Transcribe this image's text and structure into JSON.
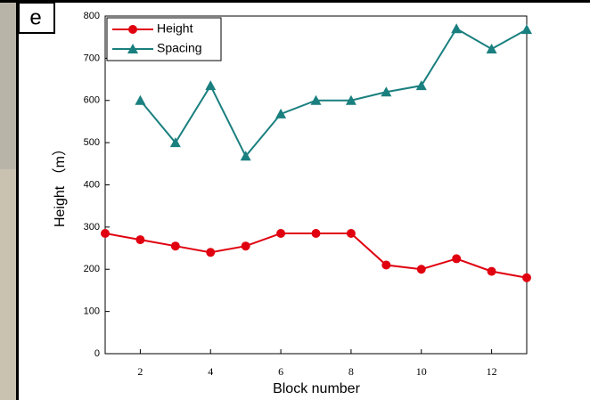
{
  "panel_label": "e",
  "chart_data": {
    "type": "line",
    "x": [
      1,
      2,
      3,
      4,
      5,
      6,
      7,
      8,
      9,
      10,
      11,
      12,
      13
    ],
    "series": [
      {
        "name": "Height",
        "color": "#e0000f",
        "marker": "circle",
        "values": [
          285,
          270,
          255,
          240,
          255,
          285,
          285,
          285,
          210,
          200,
          225,
          195,
          180
        ]
      },
      {
        "name": "Spacing",
        "color": "#1a7f7f",
        "marker": "triangle",
        "values": [
          null,
          600,
          500,
          635,
          468,
          568,
          600,
          600,
          620,
          635,
          770,
          722,
          768
        ]
      }
    ],
    "xlabel": "Block number",
    "ylabel": "Height （m）",
    "xlim": [
      1,
      13
    ],
    "ylim": [
      0,
      800
    ],
    "xticks": [
      2,
      4,
      6,
      8,
      10,
      12
    ],
    "yticks": [
      0,
      100,
      200,
      300,
      400,
      500,
      600,
      700,
      800
    ],
    "legend": "upper left"
  }
}
